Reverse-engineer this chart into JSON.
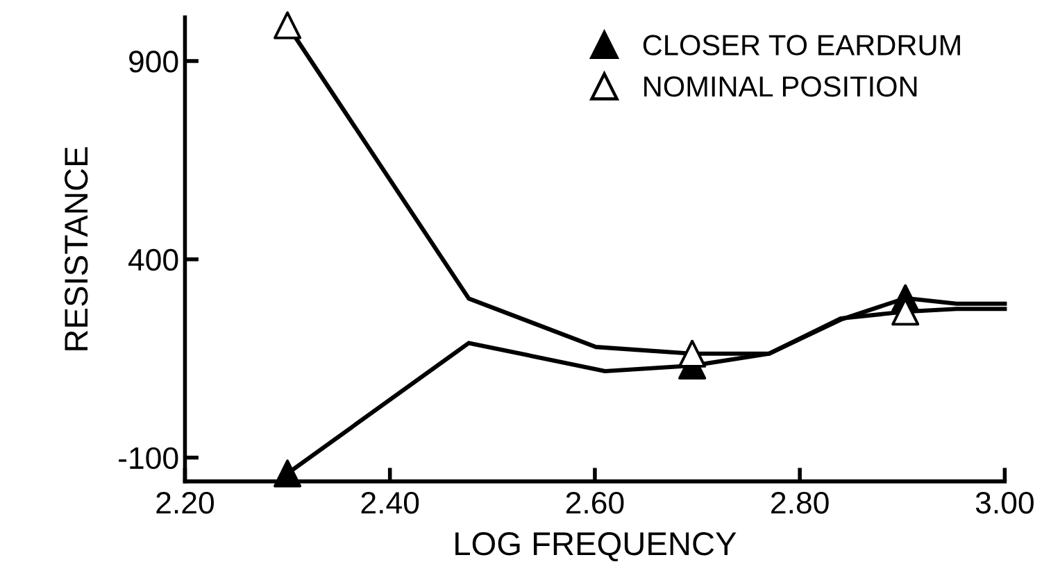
{
  "chart_data": {
    "type": "line",
    "xlabel": "LOG FREQUENCY",
    "ylabel": "RESISTANCE",
    "xlim": [
      2.2,
      3.0
    ],
    "xticks": [
      {
        "value": 2.2,
        "label": "2.20"
      },
      {
        "value": 2.4,
        "label": "2.40"
      },
      {
        "value": 2.6,
        "label": "2.60"
      },
      {
        "value": 2.8,
        "label": "2.80"
      },
      {
        "value": 3.0,
        "label": "3.00"
      }
    ],
    "ylim": [
      -160,
      1010
    ],
    "yticks": [
      -100,
      400,
      900
    ],
    "grid": false,
    "legend": "top right",
    "line_style": "solid",
    "series": [
      {
        "color": "#000000",
        "marker": "none",
        "x": [
          2.3,
          2.477,
          2.601,
          2.695,
          2.77,
          2.84,
          2.903,
          2.953,
          3.0
        ],
        "values": [
          990,
          301,
          179,
          162,
          162,
          251,
          268,
          275,
          275
        ]
      },
      {
        "color": "#000000",
        "marker": "none",
        "x": [
          2.3,
          2.477,
          2.61,
          2.695,
          2.77,
          2.84,
          2.903,
          2.953,
          3.0
        ],
        "values": [
          -140,
          189,
          118,
          132,
          162,
          248,
          302,
          288,
          288
        ]
      },
      {
        "type": "scatter",
        "name": "CLOSER TO EARDRUM",
        "color": "#000000",
        "marker": "triangle",
        "x": [
          2.3,
          2.695,
          2.903
        ],
        "values": [
          -140,
          132,
          302
        ]
      },
      {
        "type": "scatter",
        "name": "NOMINAL POSITION",
        "color": "#ffffff",
        "marker": "triangle",
        "x": [
          2.3,
          2.695,
          2.903
        ],
        "values": [
          990,
          162,
          268
        ]
      }
    ]
  }
}
